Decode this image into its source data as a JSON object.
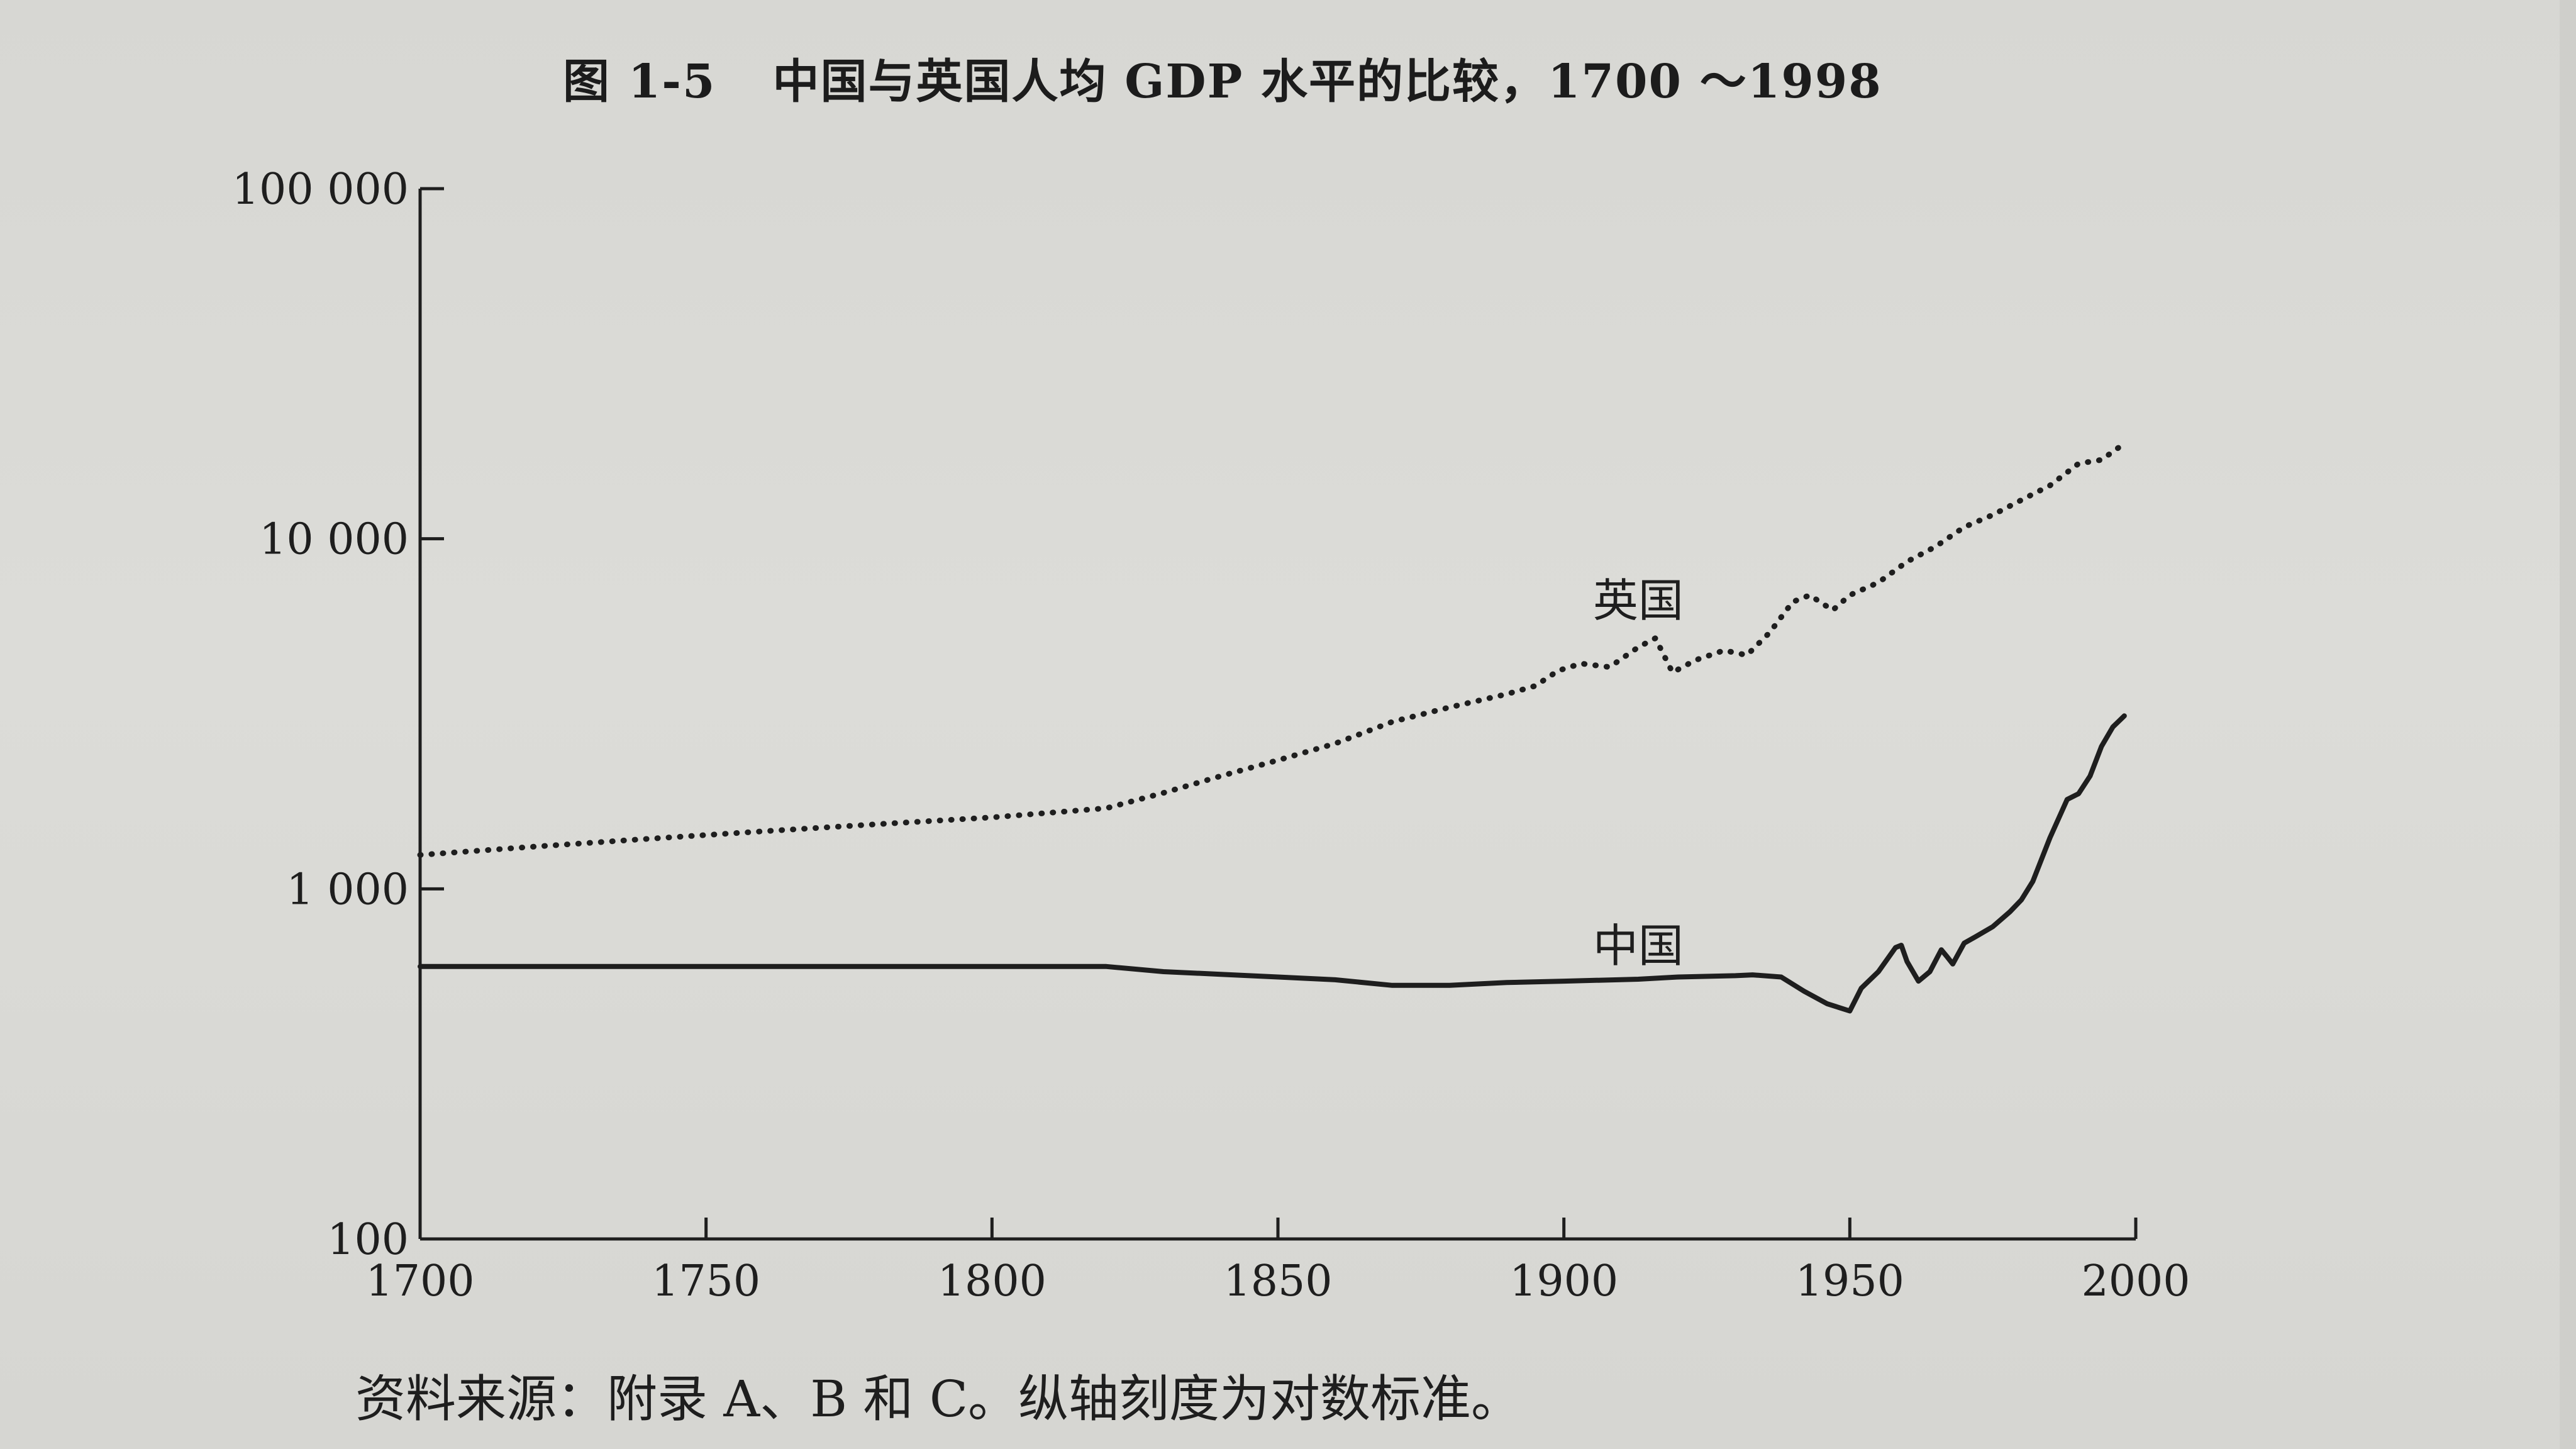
{
  "figure": {
    "number": "图 1-5",
    "title": "中国与英国人均 GDP 水平的比较，1700 ～1998",
    "source_note": "资料来源：附录 A、B 和 C。纵轴刻度为对数标准。"
  },
  "chart_data": {
    "type": "line",
    "title": "中国与英国人均 GDP 水平的比较，1700 ～1998",
    "xlabel": "",
    "ylabel": "",
    "xlim": [
      1700,
      2000
    ],
    "ylim": [
      100,
      100000
    ],
    "y_scale": "log",
    "grid": false,
    "x_ticks": [
      1700,
      1750,
      1800,
      1850,
      1900,
      1950,
      2000
    ],
    "x_tick_labels": [
      "1700",
      "1750",
      "1800",
      "1850",
      "1900",
      "1950",
      "2000"
    ],
    "y_ticks": [
      100,
      1000,
      10000,
      100000
    ],
    "y_tick_labels": [
      "100",
      "1 000",
      "10 000",
      "100 000"
    ],
    "series": [
      {
        "name": "英国",
        "style": "dotted",
        "color": "#1e1e1e",
        "label_at": [
          1913,
          6000
        ],
        "points": [
          [
            1700,
            1250
          ],
          [
            1720,
            1320
          ],
          [
            1740,
            1390
          ],
          [
            1760,
            1460
          ],
          [
            1780,
            1530
          ],
          [
            1800,
            1600
          ],
          [
            1820,
            1700
          ],
          [
            1830,
            1880
          ],
          [
            1840,
            2100
          ],
          [
            1850,
            2330
          ],
          [
            1860,
            2600
          ],
          [
            1870,
            3000
          ],
          [
            1880,
            3300
          ],
          [
            1890,
            3600
          ],
          [
            1895,
            3800
          ],
          [
            1899,
            4200
          ],
          [
            1903,
            4400
          ],
          [
            1908,
            4300
          ],
          [
            1913,
            4900
          ],
          [
            1916,
            5200
          ],
          [
            1919,
            4150
          ],
          [
            1923,
            4500
          ],
          [
            1928,
            4800
          ],
          [
            1932,
            4650
          ],
          [
            1936,
            5400
          ],
          [
            1940,
            6600
          ],
          [
            1943,
            6900
          ],
          [
            1947,
            6250
          ],
          [
            1950,
            6900
          ],
          [
            1955,
            7500
          ],
          [
            1960,
            8600
          ],
          [
            1965,
            9500
          ],
          [
            1970,
            10800
          ],
          [
            1975,
            11700
          ],
          [
            1980,
            12900
          ],
          [
            1985,
            14200
          ],
          [
            1990,
            16400
          ],
          [
            1994,
            16800
          ],
          [
            1998,
            18700
          ]
        ]
      },
      {
        "name": "中国",
        "style": "solid",
        "color": "#1e1e1e",
        "label_at": [
          1913,
          620
        ],
        "points": [
          [
            1700,
            600
          ],
          [
            1820,
            600
          ],
          [
            1830,
            580
          ],
          [
            1840,
            570
          ],
          [
            1850,
            560
          ],
          [
            1860,
            550
          ],
          [
            1870,
            530
          ],
          [
            1880,
            530
          ],
          [
            1890,
            540
          ],
          [
            1900,
            545
          ],
          [
            1913,
            552
          ],
          [
            1920,
            560
          ],
          [
            1930,
            565
          ],
          [
            1933,
            568
          ],
          [
            1938,
            560
          ],
          [
            1942,
            510
          ],
          [
            1946,
            470
          ],
          [
            1950,
            448
          ],
          [
            1952,
            520
          ],
          [
            1955,
            580
          ],
          [
            1958,
            680
          ],
          [
            1959,
            690
          ],
          [
            1960,
            620
          ],
          [
            1962,
            545
          ],
          [
            1964,
            580
          ],
          [
            1966,
            670
          ],
          [
            1967,
            640
          ],
          [
            1968,
            610
          ],
          [
            1970,
            700
          ],
          [
            1972,
            730
          ],
          [
            1975,
            780
          ],
          [
            1978,
            860
          ],
          [
            1980,
            930
          ],
          [
            1982,
            1050
          ],
          [
            1985,
            1400
          ],
          [
            1988,
            1800
          ],
          [
            1990,
            1870
          ],
          [
            1992,
            2100
          ],
          [
            1994,
            2550
          ],
          [
            1996,
            2900
          ],
          [
            1998,
            3120
          ]
        ]
      }
    ]
  }
}
